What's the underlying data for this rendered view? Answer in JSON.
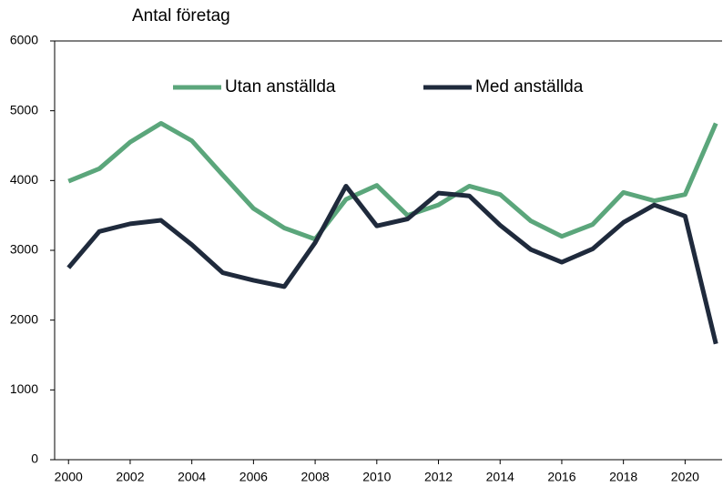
{
  "chart_data": {
    "type": "line",
    "ylabel": "Antal företag",
    "x": [
      2000,
      2001,
      2002,
      2003,
      2004,
      2005,
      2006,
      2007,
      2008,
      2009,
      2010,
      2011,
      2012,
      2013,
      2014,
      2015,
      2016,
      2017,
      2018,
      2019,
      2020,
      2021
    ],
    "series": [
      {
        "name": "Utan anställda",
        "color": "#5ba67b",
        "values": [
          3990,
          4170,
          4550,
          4820,
          4570,
          4080,
          3600,
          3320,
          3160,
          3730,
          3930,
          3500,
          3650,
          3920,
          3800,
          3420,
          3200,
          3370,
          3830,
          3710,
          3800,
          4820
        ]
      },
      {
        "name": "Med anställda",
        "color": "#1f2a3c",
        "values": [
          2750,
          3270,
          3380,
          3430,
          3080,
          2680,
          2570,
          2480,
          3110,
          3920,
          3350,
          3450,
          3820,
          3780,
          3360,
          3010,
          2830,
          3020,
          3400,
          3650,
          3490,
          1660
        ]
      }
    ],
    "xlim": [
      1999.55,
      2021.2
    ],
    "xticks": [
      2000,
      2002,
      2004,
      2006,
      2008,
      2010,
      2012,
      2014,
      2016,
      2018,
      2020
    ],
    "ylim": [
      0,
      6000
    ],
    "yticks": [
      0,
      1000,
      2000,
      3000,
      4000,
      5000,
      6000
    ],
    "legend": "top"
  }
}
